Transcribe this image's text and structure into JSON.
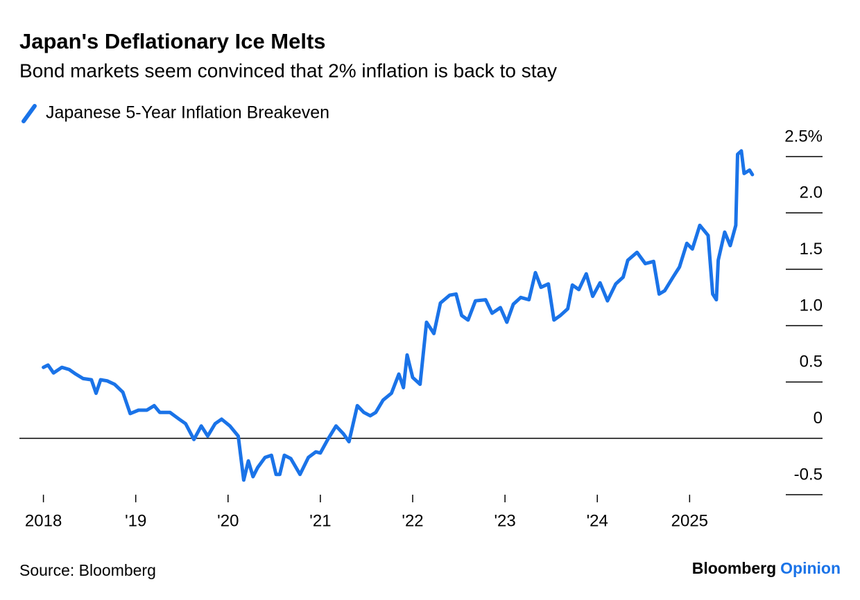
{
  "chart_data": {
    "type": "line",
    "title": "Japan's Deflationary Ice Melts",
    "subtitle": "Bond markets seem convinced that 2% inflation is back to stay",
    "source": "Source: Bloomberg",
    "logo": [
      "Bloomberg",
      "Opinion"
    ],
    "xlim": [
      2017.74,
      2026.44
    ],
    "xticks": [
      {
        "value": 2018,
        "label": "2018"
      },
      {
        "value": 2019,
        "label": "'19"
      },
      {
        "value": 2020,
        "label": "'20"
      },
      {
        "value": 2021,
        "label": "'21"
      },
      {
        "value": 2022,
        "label": "'22"
      },
      {
        "value": 2023,
        "label": "'23"
      },
      {
        "value": 2024,
        "label": "'24"
      },
      {
        "value": 2025,
        "label": "2025"
      }
    ],
    "ylim": [
      -0.5,
      2.6
    ],
    "yticks": [
      -0.5,
      0,
      0.5,
      {
        "value": 1,
        "label": "1.0"
      },
      1.5,
      {
        "value": 2,
        "label": "2.0"
      },
      {
        "value": 2.5,
        "label": "2.5%"
      }
    ],
    "x": [
      2018.0,
      2018.05,
      2018.11,
      2018.2,
      2018.28,
      2018.35,
      2018.43,
      2018.52,
      2018.57,
      2018.62,
      2018.69,
      2018.77,
      2018.86,
      2018.94,
      2019.03,
      2019.12,
      2019.2,
      2019.26,
      2019.37,
      2019.47,
      2019.54,
      2019.63,
      2019.71,
      2019.78,
      2019.86,
      2019.93,
      2020.02,
      2020.11,
      2020.17,
      2020.22,
      2020.27,
      2020.32,
      2020.4,
      2020.47,
      2020.52,
      2020.56,
      2020.61,
      2020.68,
      2020.78,
      2020.87,
      2020.95,
      2021.0,
      2021.08,
      2021.17,
      2021.25,
      2021.31,
      2021.4,
      2021.47,
      2021.54,
      2021.6,
      2021.68,
      2021.77,
      2021.85,
      2021.9,
      2021.94,
      2022.0,
      2022.08,
      2022.15,
      2022.23,
      2022.3,
      2022.4,
      2022.47,
      2022.53,
      2022.6,
      2022.68,
      2022.79,
      2022.86,
      2022.95,
      2023.02,
      2023.09,
      2023.17,
      2023.26,
      2023.33,
      2023.39,
      2023.47,
      2023.53,
      2023.6,
      2023.68,
      2023.73,
      2023.8,
      2023.88,
      2023.95,
      2024.03,
      2024.11,
      2024.2,
      2024.28,
      2024.33,
      2024.43,
      2024.52,
      2024.61,
      2024.67,
      2024.73,
      2024.82,
      2024.89,
      2024.97,
      2025.03,
      2025.11,
      2025.2,
      2025.25,
      2025.29,
      2025.31,
      2025.38,
      2025.44,
      2025.5,
      2025.52,
      2025.56,
      2025.59,
      2025.65,
      2025.68
    ],
    "series": [
      {
        "name": "Japanese 5-Year Inflation Breakeven",
        "color": "#1a73e8",
        "values": [
          0.63,
          0.65,
          0.58,
          0.63,
          0.61,
          0.57,
          0.53,
          0.52,
          0.4,
          0.52,
          0.51,
          0.48,
          0.41,
          0.22,
          0.25,
          0.25,
          0.29,
          0.23,
          0.23,
          0.17,
          0.13,
          -0.01,
          0.11,
          0.02,
          0.13,
          0.17,
          0.11,
          0.02,
          -0.37,
          -0.2,
          -0.34,
          -0.26,
          -0.17,
          -0.15,
          -0.32,
          -0.32,
          -0.15,
          -0.18,
          -0.32,
          -0.17,
          -0.12,
          -0.13,
          -0.01,
          0.11,
          0.04,
          -0.03,
          0.29,
          0.23,
          0.2,
          0.23,
          0.34,
          0.4,
          0.57,
          0.45,
          0.74,
          0.54,
          0.48,
          1.03,
          0.93,
          1.2,
          1.27,
          1.28,
          1.09,
          1.05,
          1.22,
          1.23,
          1.11,
          1.16,
          1.03,
          1.19,
          1.25,
          1.23,
          1.47,
          1.34,
          1.37,
          1.05,
          1.09,
          1.15,
          1.36,
          1.32,
          1.46,
          1.26,
          1.38,
          1.22,
          1.37,
          1.43,
          1.58,
          1.65,
          1.55,
          1.57,
          1.28,
          1.31,
          1.43,
          1.52,
          1.73,
          1.68,
          1.89,
          1.8,
          1.28,
          1.23,
          1.58,
          1.83,
          1.71,
          1.89,
          2.52,
          2.55,
          2.35,
          2.38,
          2.34
        ]
      }
    ]
  }
}
